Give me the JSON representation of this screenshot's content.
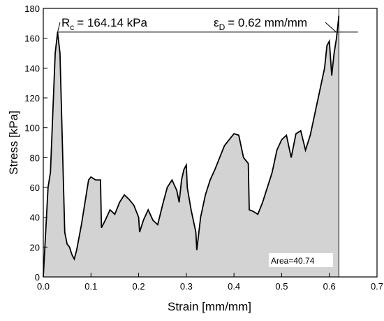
{
  "chart_data": {
    "type": "area-line",
    "xlabel": "Strain [mm/mm]",
    "ylabel": "Stress [kPa]",
    "xlim": [
      0,
      0.7
    ],
    "ylim": [
      0,
      180
    ],
    "xticks": [
      {
        "value": 0,
        "label": "0.0"
      },
      0.1,
      0.2,
      0.3,
      0.4,
      0.5,
      0.6,
      0.7
    ],
    "yticks": [
      0,
      20,
      40,
      60,
      80,
      100,
      120,
      140,
      160,
      180
    ],
    "line_color": "#000000",
    "fill_color": "#d3d3d3",
    "x": [
      0,
      0.005,
      0.01,
      0.015,
      0.02,
      0.025,
      0.03,
      0.035,
      0.04,
      0.045,
      0.05,
      0.055,
      0.06,
      0.065,
      0.07,
      0.08,
      0.09,
      0.095,
      0.1,
      0.11,
      0.12,
      0.122,
      0.13,
      0.14,
      0.15,
      0.16,
      0.17,
      0.18,
      0.19,
      0.2,
      0.202,
      0.21,
      0.22,
      0.23,
      0.24,
      0.25,
      0.26,
      0.27,
      0.28,
      0.285,
      0.29,
      0.295,
      0.3,
      0.302,
      0.31,
      0.32,
      0.322,
      0.33,
      0.34,
      0.35,
      0.36,
      0.37,
      0.38,
      0.39,
      0.4,
      0.41,
      0.42,
      0.425,
      0.43,
      0.432,
      0.44,
      0.45,
      0.46,
      0.47,
      0.48,
      0.49,
      0.5,
      0.51,
      0.52,
      0.53,
      0.54,
      0.55,
      0.56,
      0.57,
      0.58,
      0.59,
      0.595,
      0.6,
      0.605,
      0.61,
      0.615,
      0.62
    ],
    "values": [
      0,
      30,
      60,
      70,
      110,
      150,
      164,
      150,
      90,
      30,
      22,
      20,
      15,
      12,
      18,
      35,
      55,
      65,
      67,
      65,
      65,
      33,
      38,
      45,
      42,
      50,
      55,
      52,
      48,
      40,
      30,
      38,
      45,
      38,
      35,
      48,
      60,
      65,
      58,
      50,
      65,
      72,
      75,
      60,
      45,
      30,
      18,
      40,
      55,
      65,
      72,
      80,
      88,
      92,
      96,
      95,
      80,
      78,
      76,
      45,
      44,
      42,
      50,
      60,
      70,
      85,
      92,
      95,
      80,
      96,
      98,
      85,
      95,
      110,
      125,
      140,
      155,
      158,
      135,
      150,
      160,
      175
    ],
    "peak_stress": 164.14,
    "strain_d": 0.62,
    "annotations": [
      {
        "main": "R",
        "sub": "c",
        "rest": "= 164.14 kPa"
      },
      {
        "main": "ε",
        "sub": "D",
        "rest": "= 0.62 mm/mm"
      }
    ],
    "area_label": "Area=40.74"
  }
}
